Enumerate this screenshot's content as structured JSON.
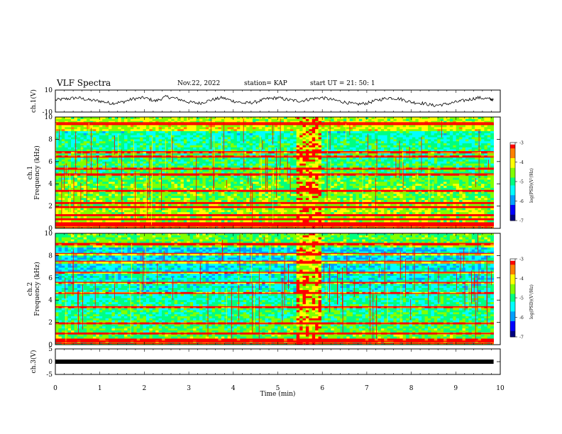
{
  "header": {
    "title": "VLF Spectra",
    "date": "Nov.22, 2022",
    "station": "station= KAP",
    "start": "start  UT =   21: 50: 1"
  },
  "chart_data": [
    {
      "type": "line",
      "panel": "ch1-waveform",
      "ylabel": "ch.1(V)",
      "ylim": [
        -10,
        10
      ],
      "yticks": [
        "10",
        "-10"
      ],
      "xlim": [
        0,
        10
      ],
      "x": [
        0,
        0.25,
        0.5,
        0.75,
        1.0,
        1.25,
        1.5,
        1.75,
        2.0,
        2.25,
        2.5,
        2.75,
        3.0,
        3.25,
        3.5,
        3.75,
        4.0,
        4.25,
        4.5,
        4.75,
        5.0,
        5.25,
        5.5,
        5.75,
        6.0,
        6.25,
        6.5,
        6.75,
        7.0,
        7.25,
        7.5,
        7.75,
        8.0,
        8.25,
        8.5,
        8.75,
        9.0,
        9.25,
        9.5,
        9.75,
        9.85
      ],
      "values": [
        1,
        2,
        3,
        1,
        0,
        -2,
        -1,
        2,
        3,
        0,
        4,
        2,
        -1,
        -2,
        1,
        3,
        0,
        -2,
        -1,
        2,
        3,
        1,
        0,
        2,
        3,
        1,
        -1,
        -3,
        -2,
        1,
        3,
        2,
        -1,
        -2,
        -4,
        -3,
        -1,
        1,
        3,
        2,
        1
      ],
      "series_color": "#000000"
    },
    {
      "type": "heatmap",
      "panel": "ch1-spectrogram",
      "ylabel": "ch.1\nFrequency (kHz)",
      "ylim": [
        0,
        10
      ],
      "yticks": [
        "0",
        "2",
        "4",
        "6",
        "8",
        "10"
      ],
      "xlim": [
        0,
        9.85
      ],
      "colorbar": {
        "label": "log(PSD)(V²/Hz)",
        "range": [
          -7,
          -3
        ],
        "ticks": [
          "-3",
          "-4",
          "-5",
          "-6",
          "-7"
        ]
      },
      "bands_khz": [
        0.1,
        0.3,
        0.8,
        1.2,
        1.9,
        2.3,
        3.4,
        4.9,
        5.3,
        6.4,
        6.9,
        9.5
      ],
      "gap_min": [
        5.4,
        5.95
      ]
    },
    {
      "type": "heatmap",
      "panel": "ch2-spectrogram",
      "ylabel": "ch.2\nFrequency (kHz)",
      "ylim": [
        0,
        10
      ],
      "yticks": [
        "0",
        "2",
        "4",
        "6",
        "8",
        "10"
      ],
      "xlim": [
        0,
        9.85
      ],
      "colorbar": {
        "label": "log(PSD)(V²/Hz)",
        "range": [
          -7,
          -3
        ],
        "ticks": [
          "-3",
          "-4",
          "-5",
          "-6",
          "-7"
        ]
      },
      "bands_khz": [
        0.1,
        0.3,
        1.0,
        1.9,
        3.4,
        4.6,
        5.6,
        6.5,
        7.5,
        8.2,
        9.1
      ],
      "gap_min": [
        5.4,
        5.95
      ]
    },
    {
      "type": "line",
      "panel": "ch3-waveform",
      "ylabel": "ch.3(V)",
      "ylim": [
        -5,
        5
      ],
      "yticks": [
        "5",
        "0",
        "-5"
      ],
      "xlim": [
        0,
        10
      ],
      "x": [
        0,
        9.85
      ],
      "values": [
        0,
        0
      ]
    }
  ],
  "xaxis": {
    "label": "Time  (min)",
    "ticks": [
      "0",
      "1",
      "2",
      "3",
      "4",
      "5",
      "6",
      "7",
      "8",
      "9",
      "10"
    ]
  },
  "colors": {
    "colormap": [
      "#000080",
      "#0000ff",
      "#00a0ff",
      "#00ffff",
      "#00ff80",
      "#80ff00",
      "#ffff00",
      "#ff8000",
      "#ff0000",
      "#ffffff"
    ]
  }
}
